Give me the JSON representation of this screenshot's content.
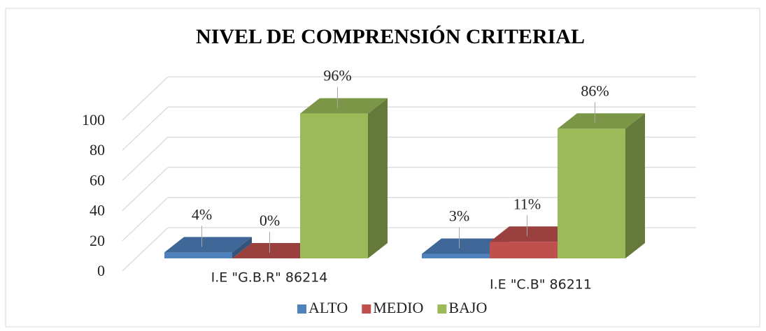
{
  "chart_data": {
    "type": "bar3d",
    "title": "NIVEL DE COMPRENSIÓN CRITERIAL",
    "categories": [
      "I.E \"G.B.R\" 86214",
      "I.E \"C.B\" 86211"
    ],
    "series": [
      {
        "name": "ALTO",
        "color": "#4f81bd",
        "values": [
          4,
          3
        ],
        "value_labels": [
          "4%",
          "3%"
        ]
      },
      {
        "name": "MEDIO",
        "color": "#c0504d",
        "values": [
          0,
          11
        ],
        "value_labels": [
          "0%",
          "11%"
        ]
      },
      {
        "name": "BAJO",
        "color": "#9bbb59",
        "values": [
          96,
          86
        ],
        "value_labels": [
          "96%",
          "86%"
        ]
      }
    ],
    "ylim": [
      0,
      100
    ],
    "yticks": [
      0,
      20,
      40,
      60,
      80,
      100
    ],
    "grid": true,
    "legend": "bottom"
  }
}
